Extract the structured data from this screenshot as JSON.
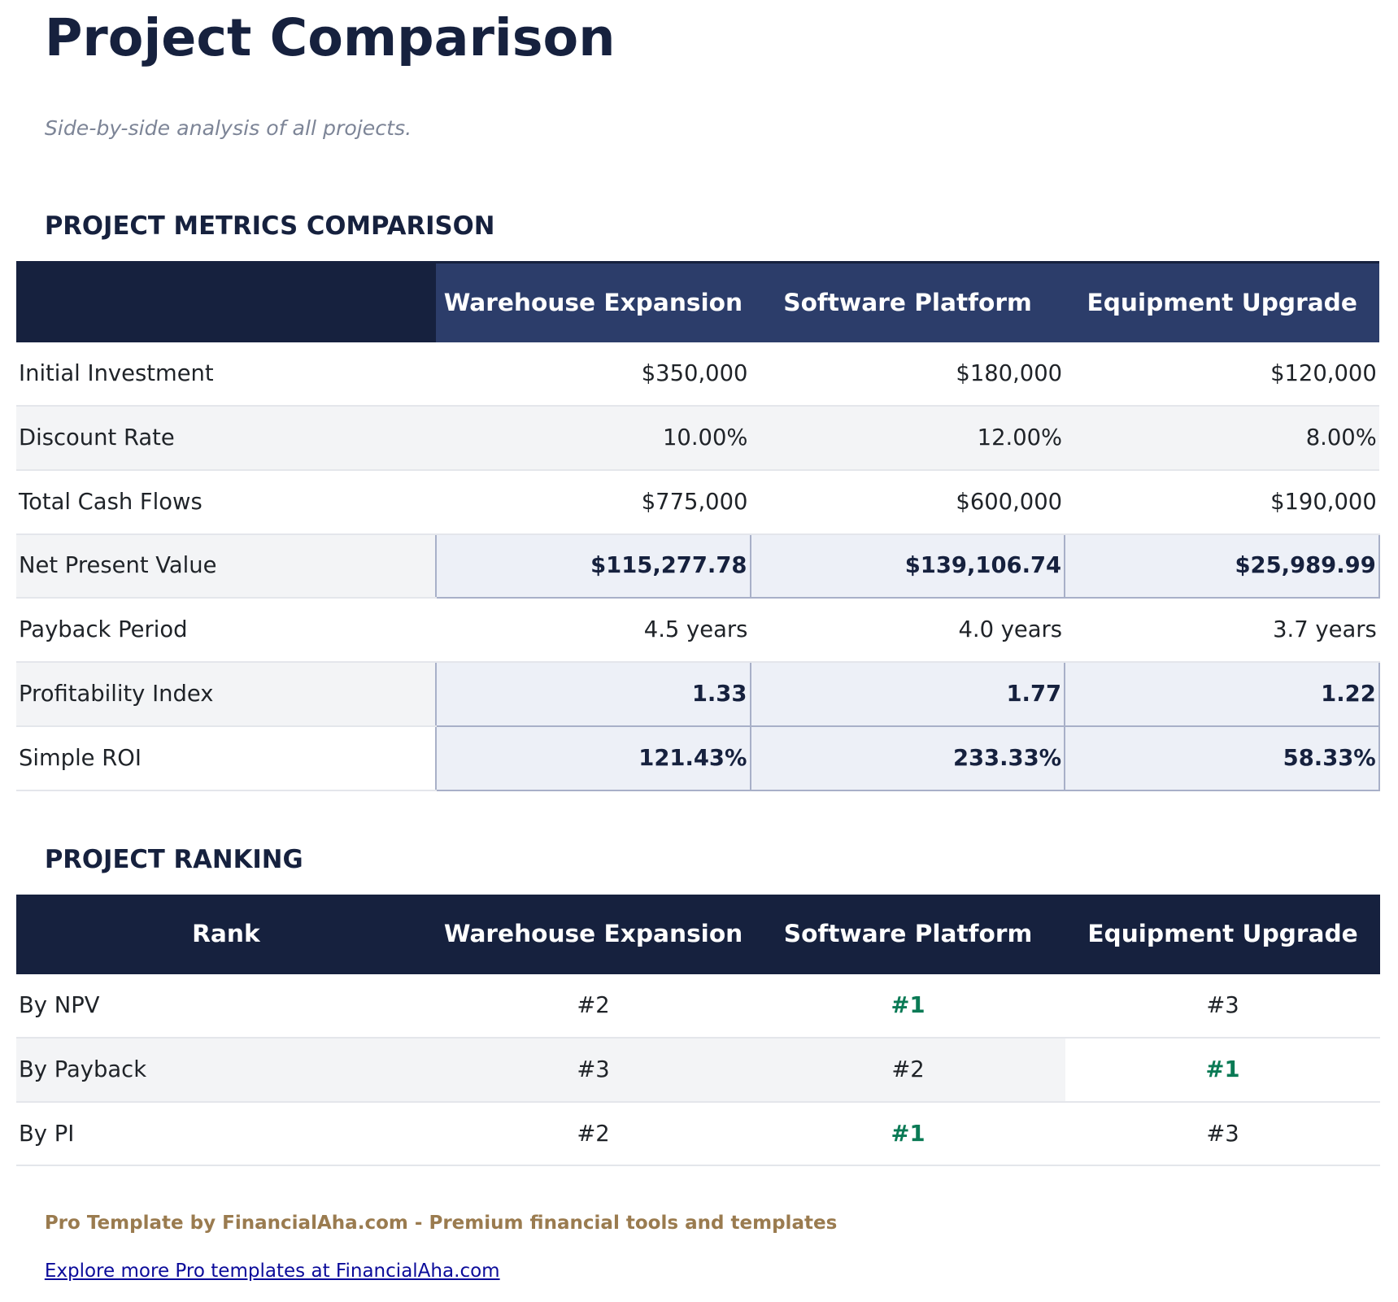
{
  "title": "Project Comparison",
  "subtitle": "Side-by-side analysis of all projects.",
  "metrics": {
    "heading": "PROJECT METRICS COMPARISON",
    "columns": [
      "",
      "Warehouse Expansion",
      "Software Platform",
      "Equipment Upgrade"
    ],
    "rows": [
      {
        "label": "Initial Investment",
        "values": [
          "$350,000",
          "$180,000",
          "$120,000"
        ],
        "highlight": false
      },
      {
        "label": "Discount Rate",
        "values": [
          "10.00%",
          "12.00%",
          "8.00%"
        ],
        "highlight": false
      },
      {
        "label": "Total Cash Flows",
        "values": [
          "$775,000",
          "$600,000",
          "$190,000"
        ],
        "highlight": false
      },
      {
        "label": "Net Present Value",
        "values": [
          "$115,277.78",
          "$139,106.74",
          "$25,989.99"
        ],
        "highlight": true
      },
      {
        "label": "Payback Period",
        "values": [
          "4.5 years",
          "4.0 years",
          "3.7 years"
        ],
        "highlight": false
      },
      {
        "label": "Profitability Index",
        "values": [
          "1.33",
          "1.77",
          "1.22"
        ],
        "highlight": true
      },
      {
        "label": "Simple ROI",
        "values": [
          "121.43%",
          "233.33%",
          "58.33%"
        ],
        "highlight": true
      }
    ]
  },
  "ranking": {
    "heading": "PROJECT RANKING",
    "columns": [
      "Rank",
      "Warehouse Expansion",
      "Software Platform",
      "Equipment Upgrade"
    ],
    "rows": [
      {
        "label": "By NPV",
        "values": [
          "#2",
          "#1",
          "#3"
        ],
        "winner": 1
      },
      {
        "label": "By Payback",
        "values": [
          "#3",
          "#2",
          "#1"
        ],
        "winner": 2
      },
      {
        "label": "By PI",
        "values": [
          "#2",
          "#1",
          "#3"
        ],
        "winner": 1
      }
    ]
  },
  "colors": {
    "navy": "#16213e",
    "header": "#2c3d6a",
    "winner": "#0a7a55",
    "gold": "#9a7b4f"
  },
  "footer": {
    "text": "Pro Template by FinancialAha.com - Premium financial tools and templates",
    "link": "Explore more Pro templates at FinancialAha.com"
  }
}
